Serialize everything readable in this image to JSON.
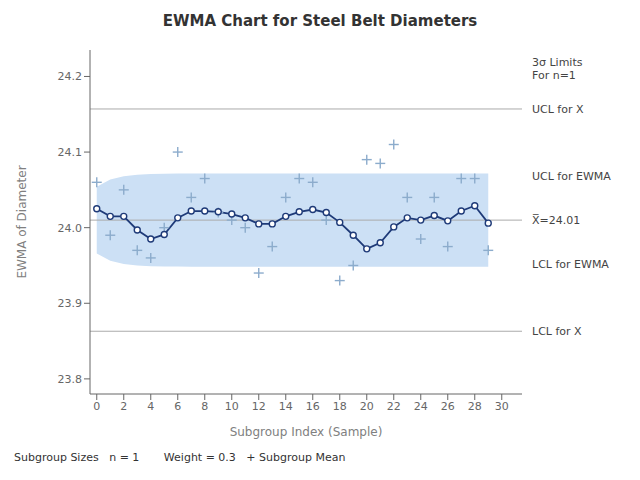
{
  "chart_data": {
    "type": "control_chart",
    "title": "EWMA Chart for Steel Belt Diameters",
    "x_label": "Subgroup Index (Sample)",
    "y_label": "EWMA of Diameter",
    "x": [
      0,
      1,
      2,
      3,
      4,
      5,
      6,
      7,
      8,
      9,
      10,
      11,
      12,
      13,
      14,
      15,
      16,
      17,
      18,
      19,
      20,
      21,
      22,
      23,
      24,
      25,
      26,
      27,
      28,
      29
    ],
    "xlim": [
      -0.5,
      31.5
    ],
    "xticks": [
      0,
      2,
      4,
      6,
      8,
      10,
      12,
      14,
      16,
      18,
      20,
      22,
      24,
      26,
      28,
      30
    ],
    "ylim": [
      23.78,
      24.235
    ],
    "yticks": [
      23.8,
      23.9,
      {
        "value": 24.0,
        "label": "24.0"
      },
      24.1,
      24.2
    ],
    "series": [
      {
        "type": "band",
        "color": "#cce0f5",
        "low": [
          23.9659,
          23.9562,
          23.952,
          23.9501,
          23.9491,
          23.9487,
          23.9485,
          23.9483,
          23.9483,
          23.9483,
          23.9483,
          23.9483,
          23.9483,
          23.9482,
          23.9482,
          23.9482,
          23.9482,
          23.9482,
          23.9482,
          23.9482,
          23.9482,
          23.9482,
          23.9482,
          23.9482,
          23.9482,
          23.9482,
          23.9482,
          23.9482,
          23.9482,
          23.9482
        ],
        "high": [
          24.0541,
          24.0638,
          24.068,
          24.0699,
          24.0709,
          24.0713,
          24.0715,
          24.0717,
          24.0717,
          24.0717,
          24.0717,
          24.0717,
          24.0717,
          24.0718,
          24.0718,
          24.0718,
          24.0718,
          24.0718,
          24.0718,
          24.0718,
          24.0718,
          24.0718,
          24.0718,
          24.0718,
          24.0718,
          24.0718,
          24.0718,
          24.0718,
          24.0718,
          24.0718
        ]
      },
      {
        "type": "scatter",
        "color": "#8caccc",
        "marker": "plus",
        "values": [
          24.06,
          23.99,
          24.05,
          23.97,
          23.96,
          24.0,
          24.1,
          24.04,
          24.065,
          24.02,
          24.01,
          24.0,
          23.94,
          23.975,
          24.04,
          24.065,
          24.06,
          24.01,
          23.93,
          23.95,
          24.09,
          24.085,
          24.11,
          24.04,
          23.985,
          24.04,
          23.975,
          24.065,
          24.065,
          23.97
        ]
      },
      {
        "type": "line",
        "color": "#1e3a78",
        "marker": "circle",
        "values": [
          24.025,
          24.015,
          24.015,
          23.997,
          23.985,
          23.991,
          24.013,
          24.022,
          24.022,
          24.021,
          24.018,
          24.013,
          24.005,
          24.005,
          24.015,
          24.021,
          24.024,
          24.02,
          24.007,
          23.99,
          23.972,
          23.98,
          24.001,
          24.013,
          24.01,
          24.016,
          24.009,
          24.022,
          24.029,
          24.006
        ]
      }
    ],
    "reference_lines": [
      {
        "y": 24.157,
        "color": "#aaaaaa"
      },
      {
        "y": 23.863,
        "color": "#aaaaaa"
      },
      {
        "y": 24.01,
        "color": "#aaaaaa"
      }
    ],
    "annotations": [
      {
        "text": "3σ Limits\nFor n=1",
        "y": 24.21
      },
      {
        "text": "UCL for X",
        "y": 24.157
      },
      {
        "text": "UCL for EWMA",
        "y": 24.068
      },
      {
        "text": "X̅=24.01",
        "y": 24.01
      },
      {
        "text": "LCL for EWMA",
        "y": 23.952
      },
      {
        "text": "LCL for X",
        "y": 23.863
      }
    ],
    "footnote": "Subgroup Sizes   n = 1       Weight = 0.3   + Subgroup Mean",
    "color": "#ffffff"
  }
}
